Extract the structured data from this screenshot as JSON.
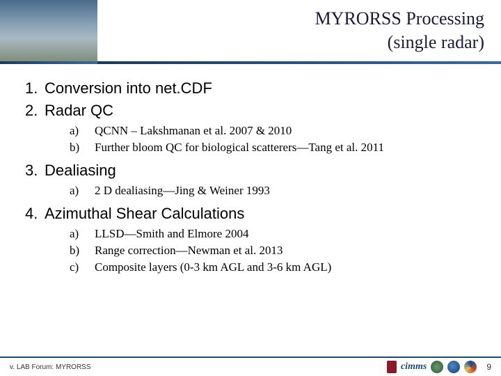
{
  "header": {
    "title_line1": "MYRORSS Processing",
    "title_line2": "(single radar)"
  },
  "items": [
    {
      "num": "1.",
      "text": "Conversion into net.CDF",
      "subs": []
    },
    {
      "num": "2.",
      "text": "Radar QC",
      "subs": [
        {
          "letter": "a)",
          "text": "QCNN – Lakshmanan et al. 2007 & 2010"
        },
        {
          "letter": "b)",
          "text": "Further bloom QC for biological scatterers—Tang et al. 2011"
        }
      ]
    },
    {
      "num": "3.",
      "text": "Dealiasing",
      "subs": [
        {
          "letter": "a)",
          "text": "2 D dealiasing—Jing & Weiner 1993"
        }
      ]
    },
    {
      "num": "4.",
      "text": "Azimuthal Shear Calculations",
      "subs": [
        {
          "letter": "a)",
          "text": "LLSD—Smith and Elmore 2004"
        },
        {
          "letter": "b)",
          "text": "Range correction—Newman et al. 2013"
        },
        {
          "letter": "c)",
          "text": "Composite layers (0-3 km AGL and 3-6 km AGL)"
        }
      ]
    }
  ],
  "footer": {
    "left": "v. LAB Forum: MYRORSS",
    "cimms": "cimms",
    "page": "9"
  },
  "colors": {
    "title": "#1a1a3a",
    "rule": "#1a4a7a",
    "bg": "#ffffff"
  }
}
